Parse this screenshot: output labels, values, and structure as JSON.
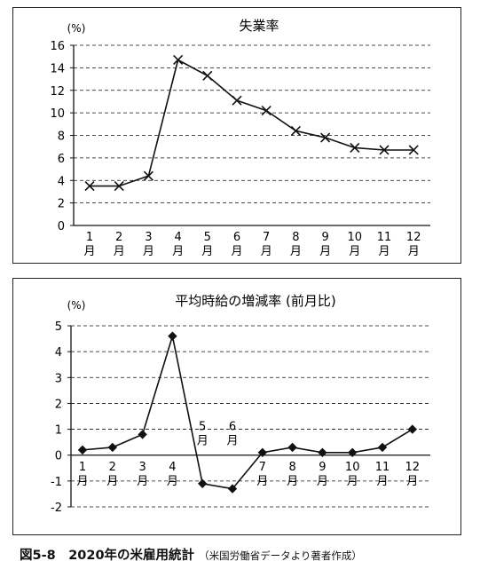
{
  "figure": {
    "caption_main": "図5-8　2020年の米雇用統計",
    "caption_sub": "（米国労働省データより著者作成）"
  },
  "chart_data": [
    {
      "type": "line",
      "title": "失業率",
      "unit_label": "(%)",
      "categories": [
        "1\n月",
        "2\n月",
        "3\n月",
        "4\n月",
        "5\n月",
        "6\n月",
        "7\n月",
        "8\n月",
        "9\n月",
        "10\n月",
        "11\n月",
        "12\n月"
      ],
      "series": [
        {
          "values": [
            3.5,
            3.5,
            4.4,
            14.7,
            13.3,
            11.1,
            10.2,
            8.4,
            7.8,
            6.9,
            6.7,
            6.7
          ]
        }
      ],
      "ylim": [
        0,
        16
      ],
      "yticks": [
        0,
        2,
        4,
        6,
        8,
        10,
        12,
        14,
        16
      ],
      "marker": "x",
      "grid": true,
      "line_color": "#111111"
    },
    {
      "type": "line",
      "title": "平均時給の増減率 (前月比)",
      "unit_label": "(%)",
      "categories": [
        "1\n月",
        "2\n月",
        "3\n月",
        "4\n月",
        "5\n月",
        "6\n月",
        "7\n月",
        "8\n月",
        "9\n月",
        "10\n月",
        "11\n月",
        "12\n月"
      ],
      "series": [
        {
          "values": [
            0.2,
            0.3,
            0.8,
            4.6,
            -1.1,
            -1.3,
            0.1,
            0.3,
            0.1,
            0.1,
            0.3,
            1.0
          ]
        }
      ],
      "ylim": [
        -2,
        5
      ],
      "yticks": [
        -2,
        -1,
        0,
        1,
        2,
        3,
        4,
        5
      ],
      "marker": "diamond",
      "grid": true,
      "line_color": "#111111"
    }
  ]
}
